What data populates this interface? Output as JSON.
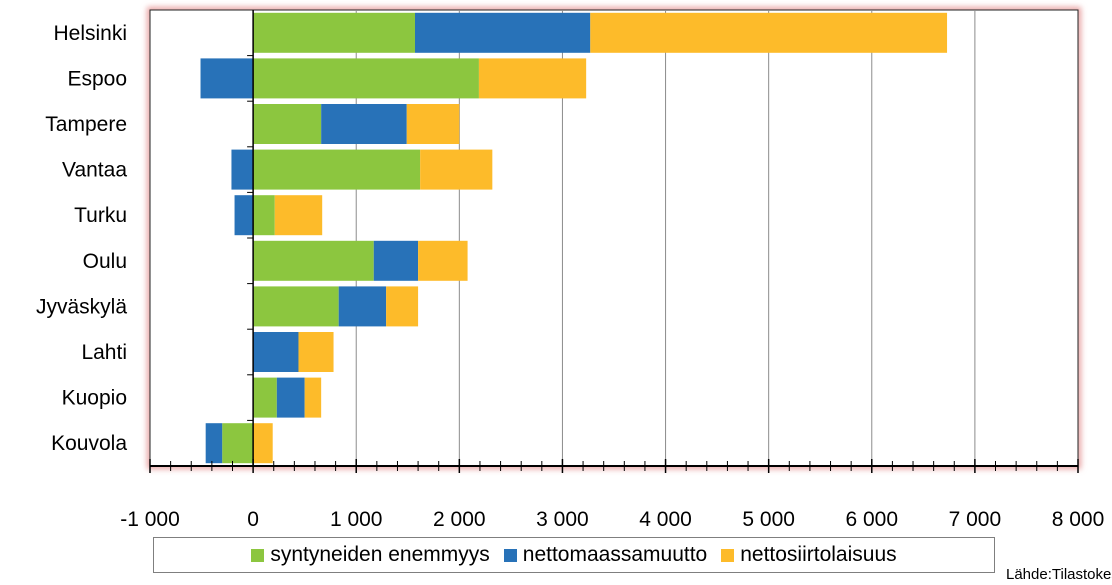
{
  "chart_data": {
    "type": "bar",
    "orientation": "horizontal",
    "stacked": true,
    "categories": [
      "Helsinki",
      "Espoo",
      "Tampere",
      "Vantaa",
      "Turku",
      "Oulu",
      "Jyväskylä",
      "Lahti",
      "Kuopio",
      "Kouvola"
    ],
    "series": [
      {
        "name": "syntyneiden enemmyys",
        "color": "#8cc63f",
        "values": [
          1570,
          2190,
          660,
          1620,
          210,
          1170,
          830,
          0,
          230,
          -300
        ]
      },
      {
        "name": "nettomaassamuutto",
        "color": "#2872b8",
        "values": [
          1700,
          -510,
          830,
          -210,
          -180,
          430,
          460,
          440,
          270,
          -160
        ]
      },
      {
        "name": "nettosiirtolaisuus",
        "color": "#fdbb2a",
        "values": [
          3460,
          1040,
          510,
          700,
          460,
          480,
          310,
          340,
          160,
          190
        ]
      }
    ],
    "xlim": [
      -1000,
      8000
    ],
    "xticks": [
      -1000,
      0,
      1000,
      2000,
      3000,
      4000,
      5000,
      6000,
      7000,
      8000
    ],
    "xtick_labels": [
      "-1 000",
      "0",
      "1 000",
      "2 000",
      "3 000",
      "4 000",
      "5 000",
      "6 000",
      "7 000",
      "8 000"
    ],
    "grid": true,
    "legend_position": "bottom"
  },
  "source": "Lähde:Tilastokeskus"
}
